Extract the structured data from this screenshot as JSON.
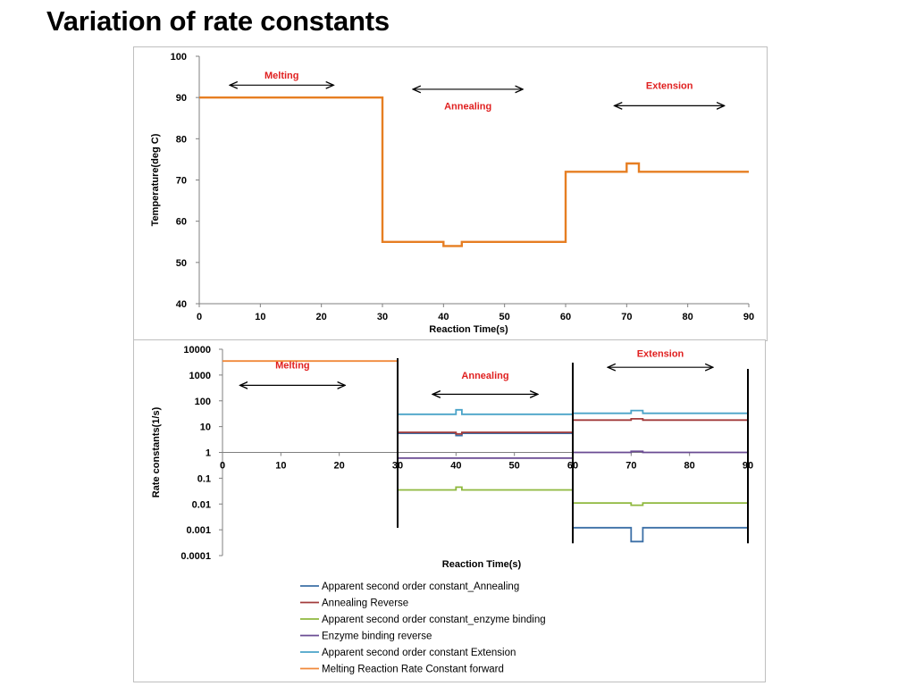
{
  "slide_title": "Variation of rate constants",
  "colors": {
    "temperature": "#e67e22",
    "apparent_annealing": "#3b6fa6",
    "annealing_reverse": "#a23b3b",
    "enzyme_binding": "#8fb83e",
    "enzyme_binding_reverse": "#6a4b93",
    "extension": "#4aa3c8",
    "melting": "#f0893a",
    "phase_text": "#e02020"
  },
  "chart_data": [
    {
      "type": "line",
      "step": true,
      "xlabel": "Reaction Time(s)",
      "ylabel": "Temperature(deg C)",
      "xlim": [
        0,
        90
      ],
      "ylim": [
        40,
        100
      ],
      "xticks": [
        "0",
        "10",
        "20",
        "30",
        "40",
        "50",
        "60",
        "70",
        "80",
        "90"
      ],
      "yticks": [
        "40",
        "50",
        "60",
        "70",
        "80",
        "90",
        "100"
      ],
      "grid": false,
      "phases": [
        {
          "label": "Melting",
          "x_start": 5,
          "x_end": 22,
          "y": 93,
          "label_y": 95.5
        },
        {
          "label": "Annealing",
          "x_start": 35,
          "x_end": 53,
          "y": 92,
          "label_y": 88
        },
        {
          "label": "Extension",
          "x_start": 68,
          "x_end": 86,
          "y": 88,
          "label_y": 93
        }
      ],
      "series": [
        {
          "color_key": "temperature",
          "x": [
            0,
            30,
            30,
            40,
            40,
            43,
            43,
            60,
            60,
            70,
            70,
            72,
            72,
            90
          ],
          "y": [
            90,
            90,
            55,
            55,
            54,
            54,
            55,
            55,
            72,
            72,
            74,
            74,
            72,
            72
          ]
        }
      ]
    },
    {
      "type": "line",
      "step": true,
      "log_y": true,
      "xlabel": "Reaction Time(s)",
      "ylabel": "Rate constants(1/s)",
      "xlim": [
        0,
        90
      ],
      "ylim": [
        0.0001,
        10000
      ],
      "xticks": [
        "0",
        "10",
        "20",
        "30",
        "40",
        "50",
        "60",
        "70",
        "80",
        "90"
      ],
      "yticks": [
        "0.0001",
        "0.001",
        "0.01",
        "0.1",
        "1",
        "10",
        "100",
        "1000",
        "10000"
      ],
      "grid": false,
      "phase_dividers_x": [
        30,
        60,
        90
      ],
      "phases": [
        {
          "label": "Melting",
          "x_start": 3,
          "x_end": 21,
          "y": 400,
          "label_y": 2500
        },
        {
          "label": "Annealing",
          "x_start": 36,
          "x_end": 54,
          "y": 180,
          "label_y": 1000
        },
        {
          "label": "Extension",
          "x_start": 66,
          "x_end": 84,
          "y": 2000,
          "label_y": 7000
        }
      ],
      "series": [
        {
          "name": "Apparent second order constant_Annealing",
          "color_key": "apparent_annealing",
          "x": [
            30,
            40,
            40,
            41,
            41,
            60
          ],
          "y": [
            5.5,
            5.5,
            4.5,
            4.5,
            5.5,
            5.5
          ]
        },
        {
          "name": "Annealing Reverse",
          "color_key": "annealing_reverse",
          "x": [
            30,
            40,
            40,
            41,
            41,
            60,
            60,
            70,
            70,
            72,
            72,
            90
          ],
          "y": [
            6,
            6,
            5.2,
            5.2,
            6,
            6,
            18,
            18,
            20,
            20,
            18,
            18
          ]
        },
        {
          "name": "Apparent second order constant_enzyme binding",
          "color_key": "enzyme_binding",
          "x": [
            30,
            40,
            40,
            41,
            41,
            60,
            60,
            70,
            70,
            72,
            72,
            90
          ],
          "y": [
            0.035,
            0.035,
            0.045,
            0.045,
            0.035,
            0.035,
            0.011,
            0.011,
            0.009,
            0.009,
            0.011,
            0.011
          ]
        },
        {
          "name": "Enzyme binding reverse",
          "color_key": "enzyme_binding_reverse",
          "x": [
            30,
            60,
            60,
            70,
            70,
            72,
            72,
            90
          ],
          "y": [
            0.6,
            0.6,
            1,
            1,
            1.1,
            1.1,
            1,
            1
          ]
        },
        {
          "name": "Apparent second order constant Extension",
          "color_key": "extension",
          "x": [
            30,
            40,
            40,
            41,
            41,
            60,
            60,
            70,
            70,
            72,
            72,
            90
          ],
          "y": [
            30,
            30,
            45,
            45,
            30,
            30,
            33,
            33,
            42,
            42,
            33,
            33
          ]
        },
        {
          "name": "Apparent second order constant Extension",
          "legend": false,
          "color_key": "apparent_annealing",
          "x": [
            60,
            70,
            70,
            72,
            72,
            90
          ],
          "y": [
            0.0012,
            0.0012,
            0.00035,
            0.00035,
            0.0012,
            0.0012
          ]
        },
        {
          "name": "Melting Reaction Rate Constant forward",
          "color_key": "melting",
          "x": [
            0,
            30
          ],
          "y": [
            3500,
            3500
          ]
        }
      ]
    }
  ]
}
